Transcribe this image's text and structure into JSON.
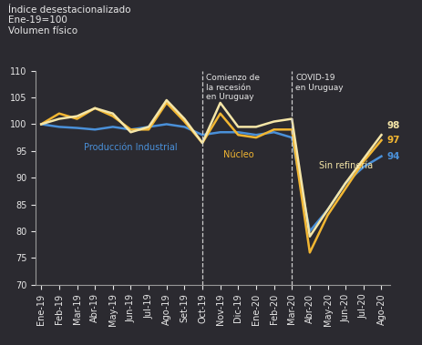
{
  "chart_data": {
    "type": "line",
    "title": "Índice desestacionalizado\nEne-19=100\nVolumen físico",
    "categories": [
      "Ene-19",
      "Feb-19",
      "Mar-19",
      "Abr-19",
      "May-19",
      "Jun-19",
      "Jul-19",
      "Ago-19",
      "Set-19",
      "Oct-19",
      "Nov-19",
      "Dic-19",
      "Ene-20",
      "Feb-20",
      "Mar-20",
      "Abr-20",
      "May-20",
      "Jun-20",
      "Jul-20",
      "Ago-20"
    ],
    "series": [
      {
        "name": "Producción Industrial",
        "color": "#4a90d9",
        "values": [
          100,
          99.5,
          99.3,
          99,
          99.5,
          99,
          99.5,
          100,
          99.5,
          98,
          98.5,
          98.5,
          98,
          98.5,
          97.5,
          80,
          84,
          89,
          92,
          94
        ],
        "value_labels": [
          null,
          null,
          null,
          null,
          null,
          null,
          null,
          null,
          null,
          null,
          null,
          null,
          null,
          null,
          null,
          null,
          null,
          null,
          null,
          "94"
        ]
      },
      {
        "name": "Núcleo",
        "color": "#f2b632",
        "values": [
          100,
          102,
          101,
          103,
          101.5,
          99,
          99,
          104,
          100.5,
          96.5,
          102,
          98,
          97.5,
          99,
          99,
          76,
          83,
          88,
          93,
          97
        ],
        "value_labels": [
          null,
          null,
          null,
          null,
          null,
          null,
          null,
          null,
          null,
          null,
          null,
          null,
          null,
          null,
          null,
          null,
          null,
          null,
          null,
          "97"
        ]
      },
      {
        "name": "Sin refinería",
        "color": "#f5e6a8",
        "values": [
          100,
          101,
          101.5,
          103,
          102,
          98.5,
          99.5,
          104.5,
          101,
          96.5,
          104,
          99.5,
          99.5,
          100.5,
          101,
          79,
          84,
          89,
          93.5,
          98
        ],
        "value_labels": [
          null,
          null,
          null,
          null,
          null,
          null,
          null,
          null,
          null,
          null,
          null,
          null,
          null,
          null,
          null,
          null,
          null,
          null,
          null,
          "98"
        ]
      }
    ],
    "annotations": [
      {
        "text": "Comienzo de\nla recesión\nen Uruguay",
        "x": "Oct-19"
      },
      {
        "text": "COVID-19\nen Uruguay",
        "x": "Mar-20"
      }
    ],
    "ylim": [
      70,
      110
    ],
    "yticks": [
      70,
      75,
      80,
      85,
      90,
      95,
      100,
      105,
      110
    ],
    "grid": false
  }
}
